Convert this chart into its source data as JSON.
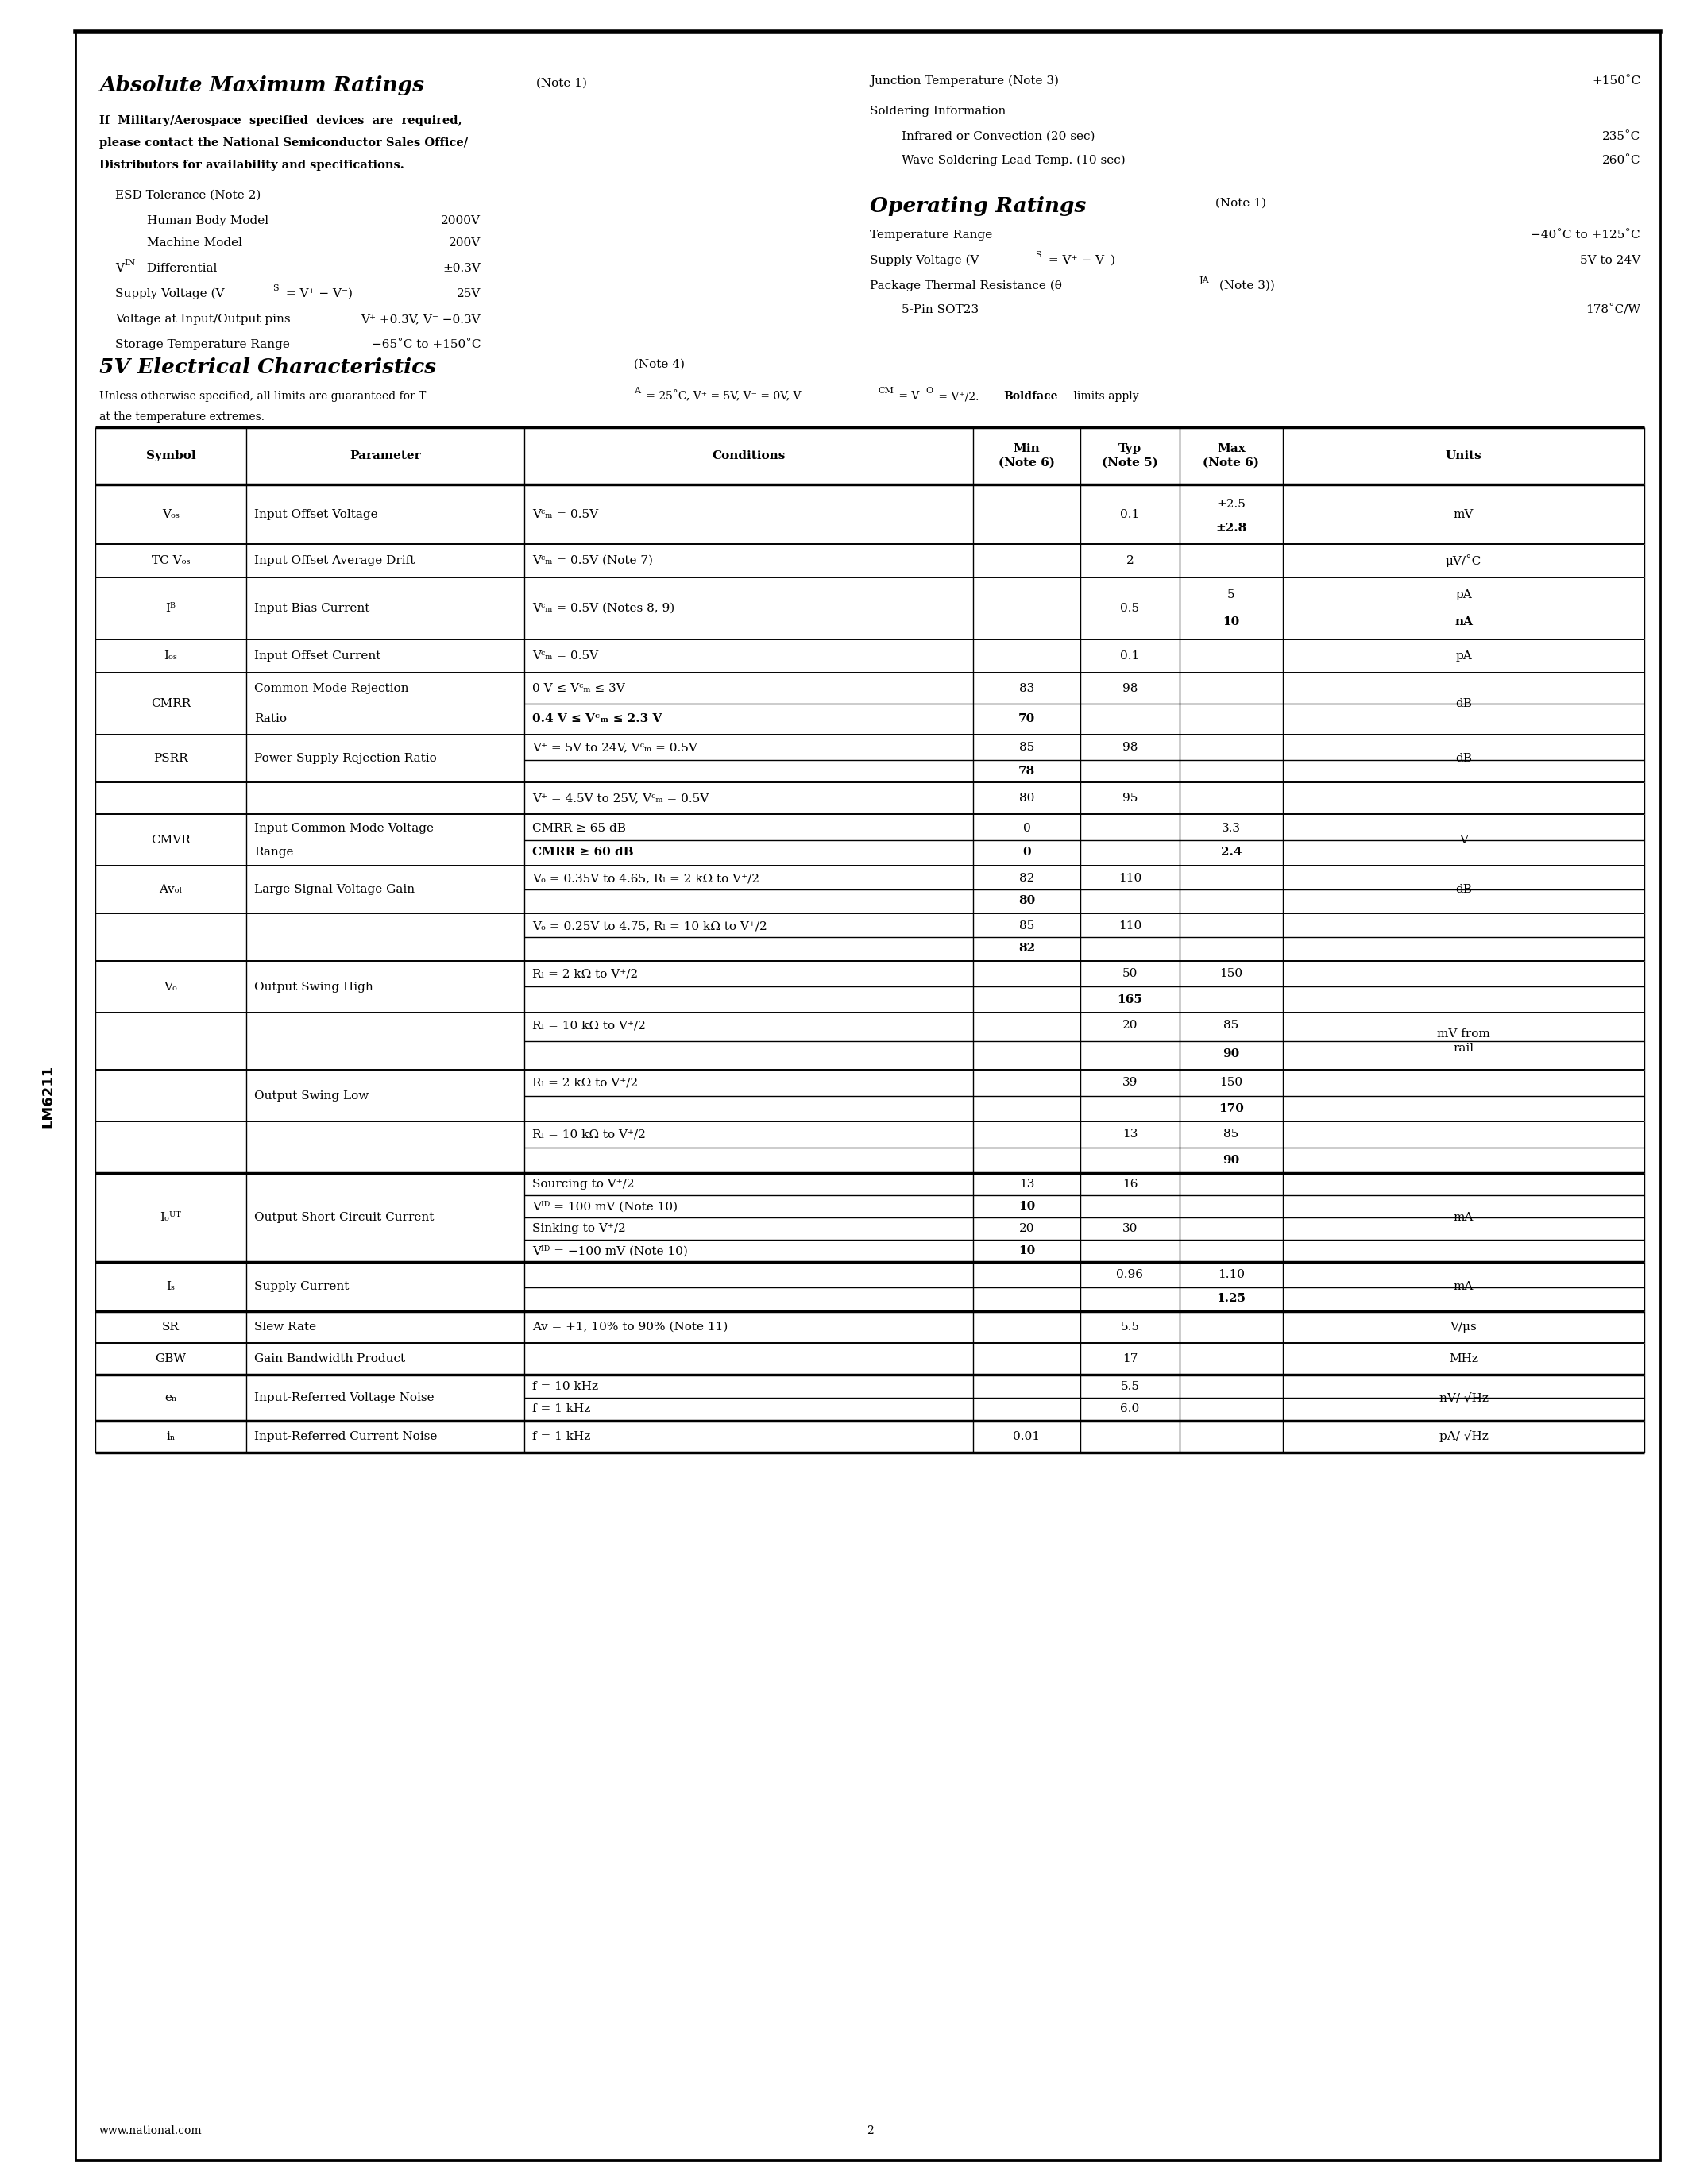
{
  "page_bg": "#ffffff",
  "footer_left": "www.national.com",
  "footer_center": "2",
  "sidebar": "LM6211"
}
